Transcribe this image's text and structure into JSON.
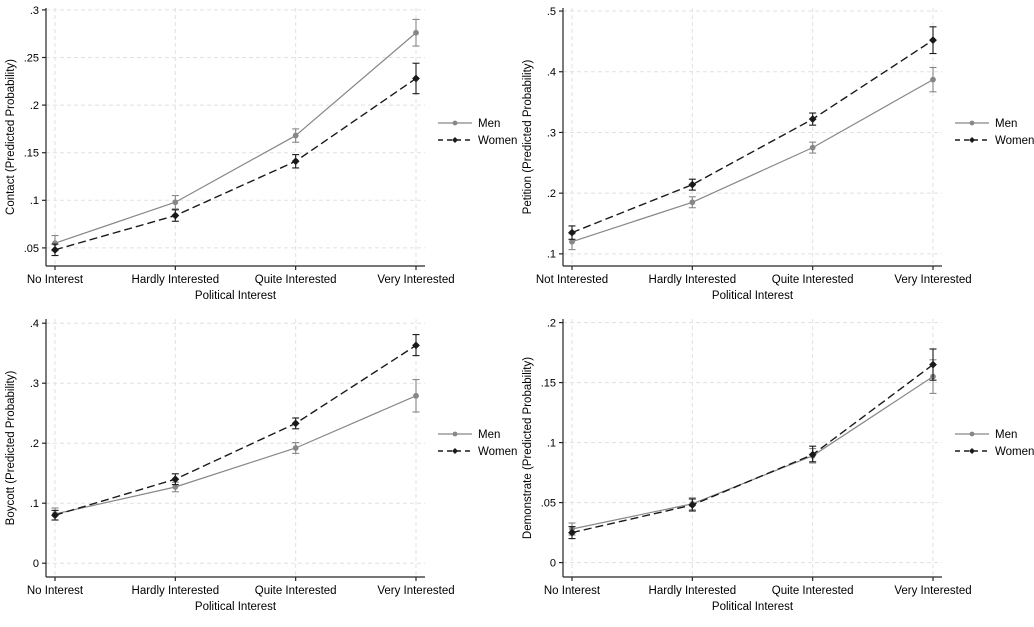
{
  "figure": {
    "background": "#ffffff",
    "colors": {
      "men": "#878787",
      "women": "#1a1a1a",
      "grid": "#e1e1e1",
      "axis": "#262626",
      "text": "#000000"
    }
  },
  "chart_data": [
    {
      "type": "line",
      "position": "top-left",
      "title": "",
      "ylabel": "Contact (Predicted Probability)",
      "xlabel": "Political Interest",
      "categories": [
        "No Interest",
        "Hardly Interested",
        "Quite Interested",
        "Very Interested"
      ],
      "ylim": [
        0.031,
        0.302
      ],
      "yticks": [
        0.05,
        0.1,
        0.15,
        0.2,
        0.25,
        0.3
      ],
      "ytick_labels": [
        ".05",
        ".1",
        ".15",
        ".2",
        ".25",
        ".3"
      ],
      "grid": true,
      "legend_position": "right-outside",
      "series": [
        {
          "name": "Men",
          "color": "#878787",
          "line": "solid",
          "marker": "circle",
          "values": [
            0.055,
            0.098,
            0.168,
            0.276
          ],
          "ci_low": [
            0.047,
            0.091,
            0.161,
            0.262
          ],
          "ci_high": [
            0.063,
            0.105,
            0.175,
            0.29
          ]
        },
        {
          "name": "Women",
          "color": "#1a1a1a",
          "line": "dashed",
          "marker": "diamond",
          "values": [
            0.048,
            0.084,
            0.141,
            0.228
          ],
          "ci_low": [
            0.042,
            0.078,
            0.134,
            0.212
          ],
          "ci_high": [
            0.054,
            0.09,
            0.148,
            0.244
          ]
        }
      ]
    },
    {
      "type": "line",
      "position": "top-right",
      "title": "",
      "ylabel": "Petition (Predicted Probability)",
      "xlabel": "Political Interest",
      "categories": [
        "Not Interested",
        "Hardly Interested",
        "Quite Interested",
        "Very Interested"
      ],
      "ylim": [
        0.08,
        0.505
      ],
      "yticks": [
        0.1,
        0.2,
        0.3,
        0.4,
        0.5
      ],
      "ytick_labels": [
        ".1",
        ".2",
        ".3",
        ".4",
        ".5"
      ],
      "grid": true,
      "legend_position": "right-outside",
      "series": [
        {
          "name": "Men",
          "color": "#878787",
          "line": "solid",
          "marker": "circle",
          "values": [
            0.12,
            0.185,
            0.275,
            0.387
          ],
          "ci_low": [
            0.107,
            0.176,
            0.266,
            0.367
          ],
          "ci_high": [
            0.133,
            0.194,
            0.284,
            0.407
          ]
        },
        {
          "name": "Women",
          "color": "#1a1a1a",
          "line": "dashed",
          "marker": "diamond",
          "values": [
            0.135,
            0.214,
            0.322,
            0.452
          ],
          "ci_low": [
            0.124,
            0.205,
            0.312,
            0.43
          ],
          "ci_high": [
            0.146,
            0.223,
            0.332,
            0.474
          ]
        }
      ]
    },
    {
      "type": "line",
      "position": "bottom-left",
      "title": "",
      "ylabel": "Boycott (Predicted Probability)",
      "xlabel": "Political Interest",
      "categories": [
        "No Interest",
        "Hardly Interested",
        "Quite Interested",
        "Very Interested"
      ],
      "ylim": [
        -0.023,
        0.407
      ],
      "yticks": [
        0,
        0.1,
        0.2,
        0.3,
        0.4
      ],
      "ytick_labels": [
        "0",
        ".1",
        ".2",
        ".3",
        ".4"
      ],
      "grid": true,
      "legend_position": "right-outside",
      "series": [
        {
          "name": "Men",
          "color": "#878787",
          "line": "solid",
          "marker": "circle",
          "values": [
            0.082,
            0.127,
            0.192,
            0.279
          ],
          "ci_low": [
            0.072,
            0.119,
            0.183,
            0.252
          ],
          "ci_high": [
            0.092,
            0.135,
            0.201,
            0.306
          ]
        },
        {
          "name": "Women",
          "color": "#1a1a1a",
          "line": "dashed",
          "marker": "diamond",
          "values": [
            0.08,
            0.14,
            0.233,
            0.363
          ],
          "ci_low": [
            0.072,
            0.131,
            0.224,
            0.346
          ],
          "ci_high": [
            0.088,
            0.149,
            0.242,
            0.381
          ]
        }
      ]
    },
    {
      "type": "line",
      "position": "bottom-right",
      "title": "",
      "ylabel": "Demonstrate (Predicted Probability)",
      "xlabel": "Political Interest",
      "categories": [
        "No Interest",
        "Hardly Interested",
        "Quite Interested",
        "Very Interested"
      ],
      "ylim": [
        -0.012,
        0.203
      ],
      "yticks": [
        0,
        0.05,
        0.1,
        0.15,
        0.2
      ],
      "ytick_labels": [
        "0",
        ".05",
        ".1",
        ".15",
        ".2"
      ],
      "grid": true,
      "legend_position": "right-outside",
      "series": [
        {
          "name": "Men",
          "color": "#878787",
          "line": "solid",
          "marker": "circle",
          "values": [
            0.028,
            0.049,
            0.089,
            0.155
          ],
          "ci_low": [
            0.023,
            0.044,
            0.083,
            0.141
          ],
          "ci_high": [
            0.033,
            0.054,
            0.095,
            0.169
          ]
        },
        {
          "name": "Women",
          "color": "#1a1a1a",
          "line": "dashed",
          "marker": "diamond",
          "values": [
            0.025,
            0.048,
            0.09,
            0.165
          ],
          "ci_low": [
            0.02,
            0.043,
            0.084,
            0.152
          ],
          "ci_high": [
            0.03,
            0.053,
            0.097,
            0.178
          ]
        }
      ]
    }
  ]
}
